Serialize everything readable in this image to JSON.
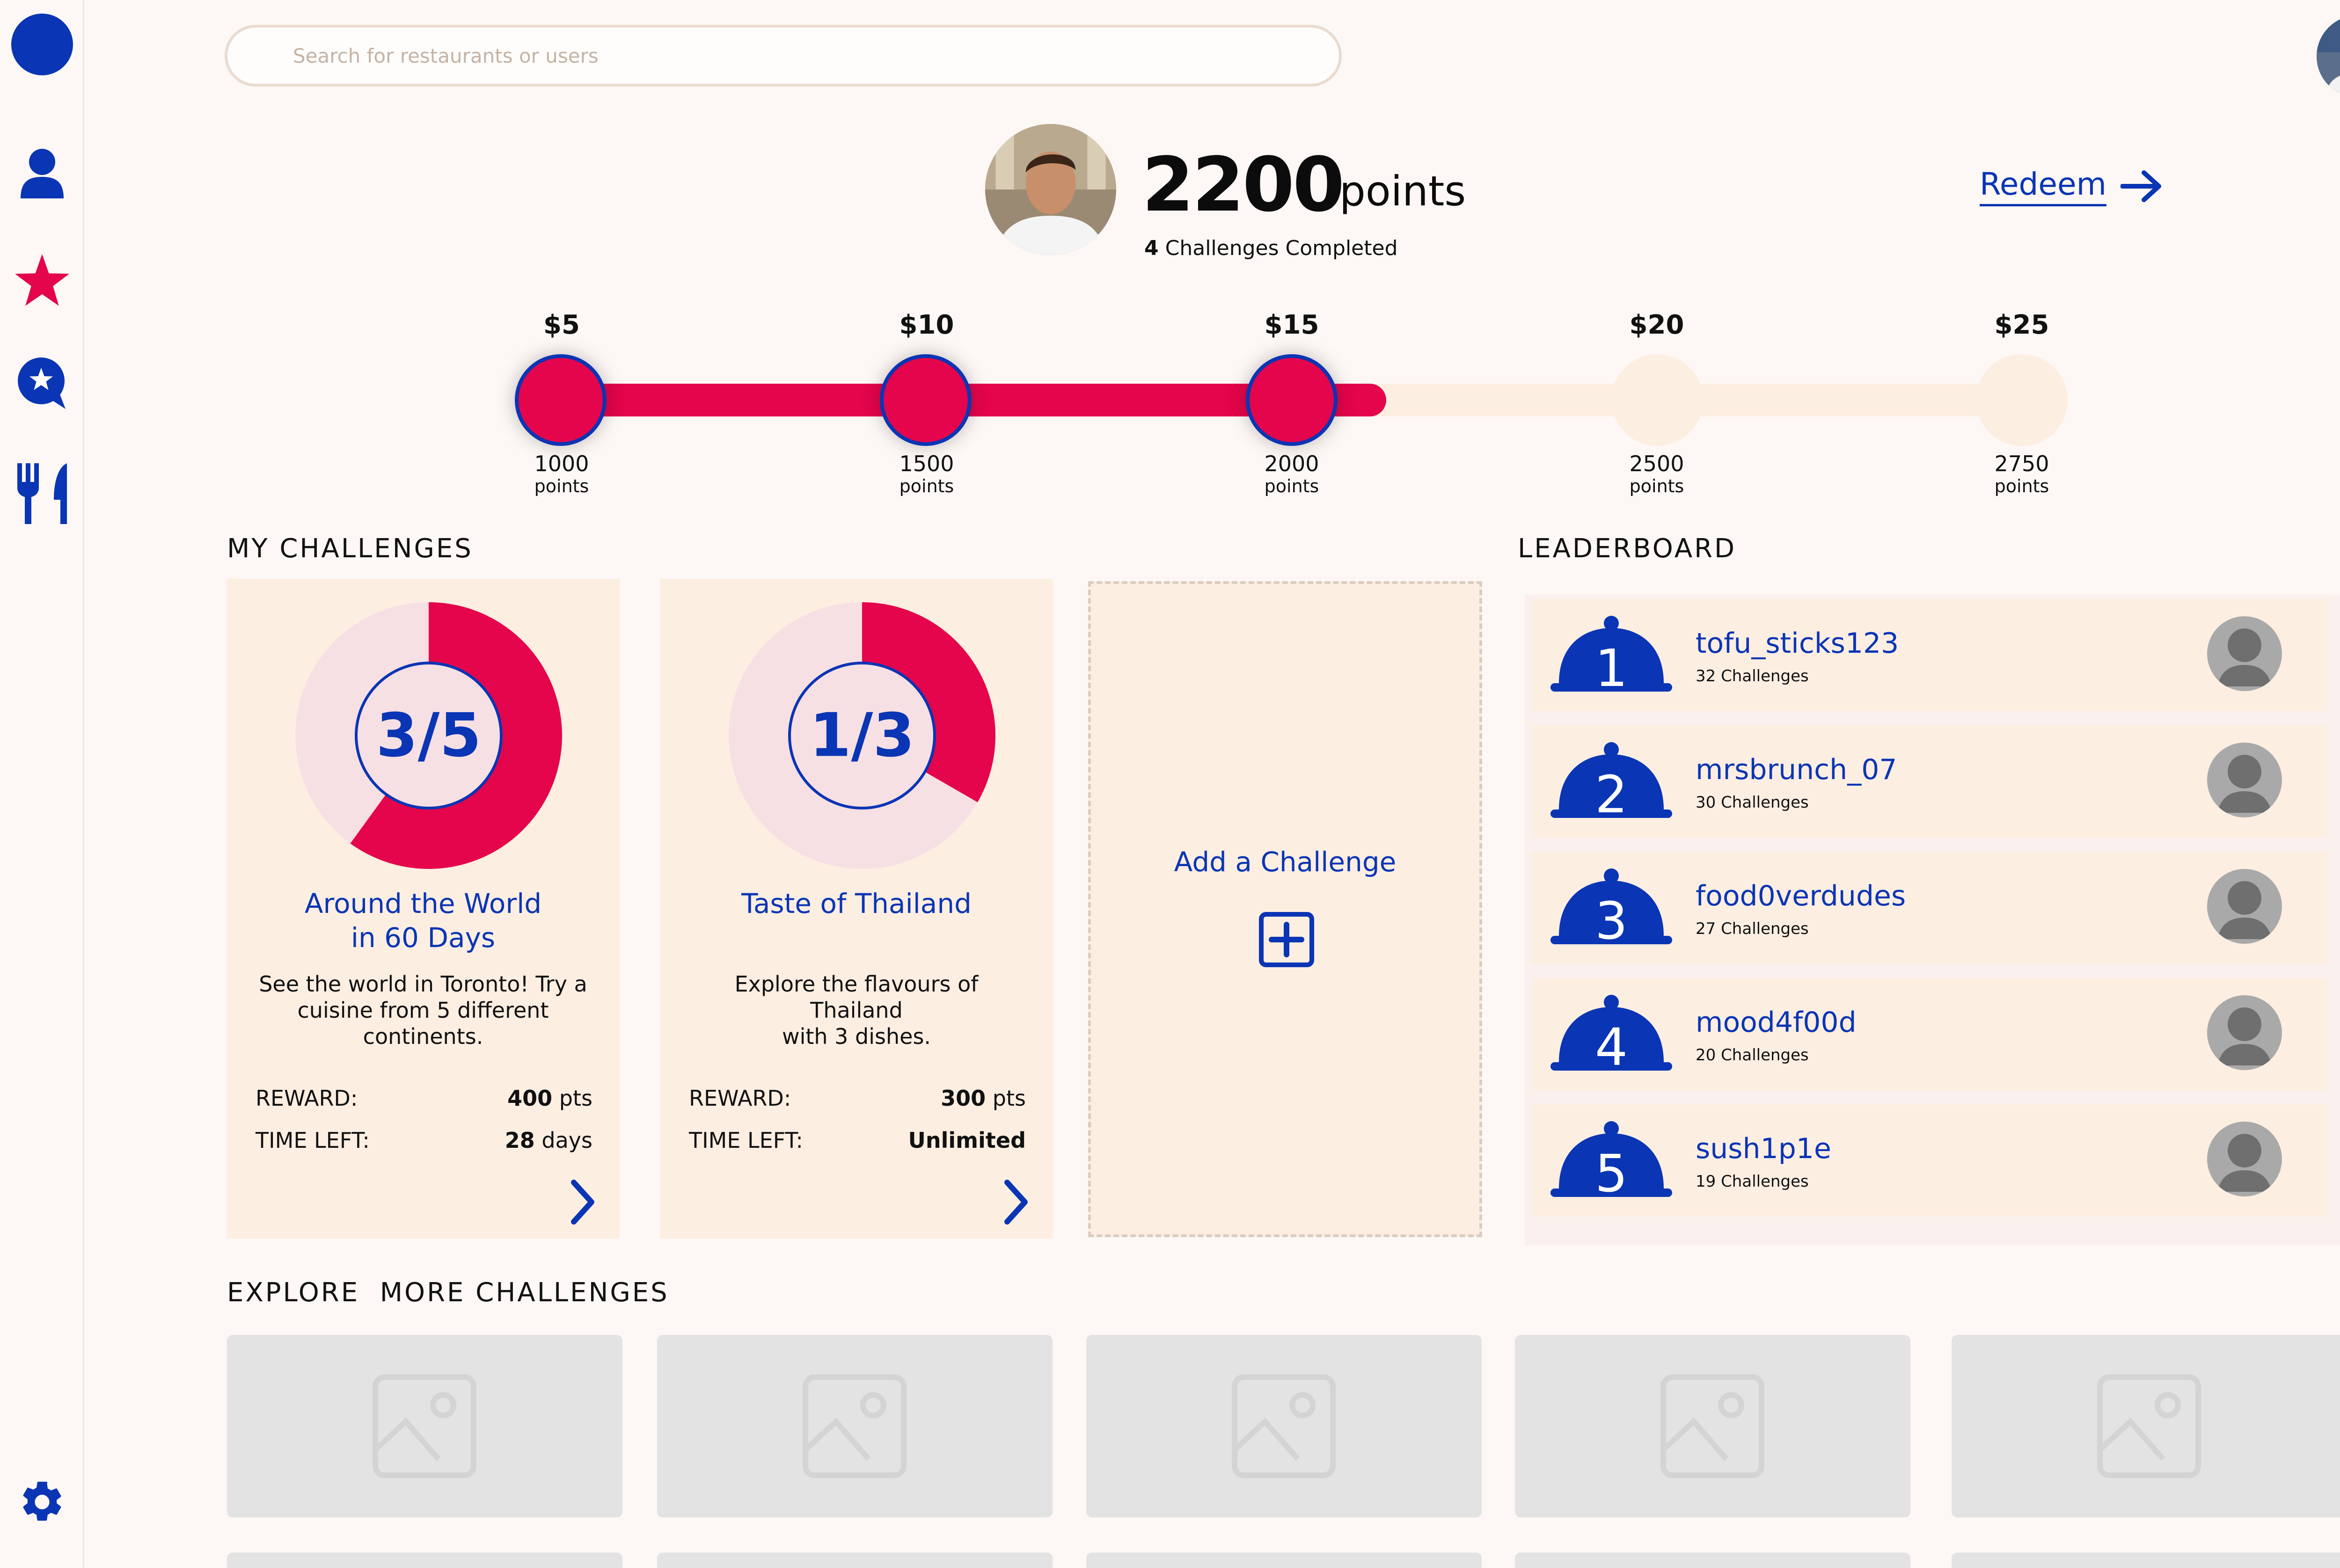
{
  "search": {
    "placeholder": "Search for restaurants or users"
  },
  "user": {
    "points_value": "2200",
    "points_unit": "points",
    "challenges_completed_count": "4",
    "challenges_completed_label": "Challenges Completed"
  },
  "redeem": {
    "label": "Redeem"
  },
  "progress": {
    "fraction": 0.56,
    "milestones": [
      {
        "amount": "$5",
        "points": "1000",
        "points_label": "points",
        "reached": true
      },
      {
        "amount": "$10",
        "points": "1500",
        "points_label": "points",
        "reached": true
      },
      {
        "amount": "$15",
        "points": "2000",
        "points_label": "points",
        "reached": true
      },
      {
        "amount": "$20",
        "points": "2500",
        "points_label": "points",
        "reached": false
      },
      {
        "amount": "$25",
        "points": "2750",
        "points_label": "points",
        "reached": false
      }
    ]
  },
  "sections": {
    "my_challenges": "MY CHALLENGES",
    "leaderboard": "LEADERBOARD",
    "explore": "EXPLORE  MORE CHALLENGES"
  },
  "challenges": [
    {
      "progress_text": "3/5",
      "progress_fraction": 0.6,
      "title_line1": "Around the World",
      "title_line2": "in 60 Days",
      "desc_line1": "See the world in Toronto! Try a",
      "desc_line2": "cuisine from 5 different",
      "desc_line3": "continents.",
      "reward_label": "REWARD:",
      "reward_value": "400",
      "reward_unit": "pts",
      "time_label": "TIME LEFT:",
      "time_value": "28",
      "time_unit": "days"
    },
    {
      "progress_text": "1/3",
      "progress_fraction": 0.3333,
      "title_line1": "Taste of Thailand",
      "desc_line1": "Explore the flavours of Thailand",
      "desc_line2": "with 3 dishes.",
      "reward_label": "REWARD:",
      "reward_value": "300",
      "reward_unit": "pts",
      "time_label": "TIME LEFT:",
      "time_value": "Unlimited"
    }
  ],
  "add_challenge": {
    "label": "Add a Challenge"
  },
  "leaderboard": [
    {
      "rank": "1",
      "name": "tofu_sticks123",
      "count": "32 Challenges"
    },
    {
      "rank": "2",
      "name": "mrsbrunch_07",
      "count": "30 Challenges"
    },
    {
      "rank": "3",
      "name": "food0verdudes",
      "count": "27 Challenges"
    },
    {
      "rank": "4",
      "name": "mood4f00d",
      "count": "20 Challenges"
    },
    {
      "rank": "5",
      "name": "sush1p1e",
      "count": "19 Challenges"
    }
  ],
  "colors": {
    "accent_blue": "#0a35b4",
    "accent_red": "#e4054c",
    "card_bg": "#fdeee2",
    "page_bg": "#fdf8f5",
    "placeholder_gray": "#e3e3e3"
  },
  "icons": {
    "sidebar": [
      "logo-circle-icon",
      "profile-icon",
      "star-icon",
      "review-bubble-icon",
      "utensils-icon",
      "gear-icon"
    ]
  }
}
